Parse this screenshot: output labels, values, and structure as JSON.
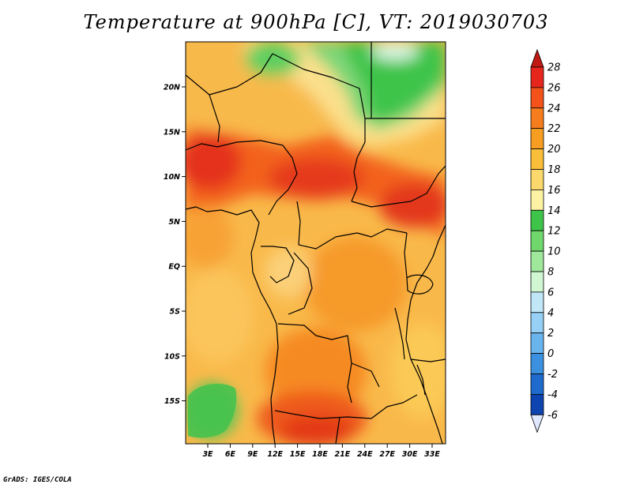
{
  "title": "Temperature at 900hPa [C], VT: 2019030703",
  "credit": "GrADS: IGES/COLA",
  "map": {
    "variable": "Temperature",
    "level_hpa": 900,
    "units": "C",
    "valid_time": "2019030703",
    "lat_labels": [
      "20N",
      "15N",
      "10N",
      "5N",
      "EQ",
      "5S",
      "10S",
      "15S"
    ],
    "lon_labels": [
      "3E",
      "6E",
      "9E",
      "12E",
      "15E",
      "18E",
      "21E",
      "24E",
      "27E",
      "30E",
      "33E"
    ]
  },
  "colorbar": {
    "levels": [
      "28",
      "26",
      "24",
      "22",
      "20",
      "18",
      "16",
      "14",
      "12",
      "10",
      "8",
      "6",
      "4",
      "2",
      "0",
      "-2",
      "-4",
      "-6"
    ],
    "colors": [
      "#e6261c",
      "#f3521a",
      "#f57d1e",
      "#f79e22",
      "#f9be3a",
      "#fbd86c",
      "#fdf1a4",
      "#3fc44a",
      "#6fd76c",
      "#9fe79b",
      "#d0f6d2",
      "#c0e6f8",
      "#96d0f4",
      "#6ab4ee",
      "#3c90e0",
      "#1f6acd",
      "#0e44b0",
      "#061a6e"
    ],
    "top_arrow_color": "#c01812",
    "bottom_arrow_color": "#e0e8ff"
  }
}
